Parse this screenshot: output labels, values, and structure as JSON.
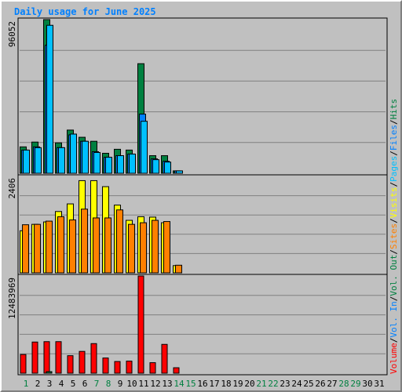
{
  "chart_data": {
    "type": "bar",
    "title": "Daily usage for June 2025",
    "categories": [
      "1",
      "2",
      "3",
      "4",
      "5",
      "6",
      "7",
      "8",
      "9",
      "10",
      "11",
      "12",
      "13",
      "14",
      "15",
      "16",
      "17",
      "18",
      "19",
      "20",
      "21",
      "22",
      "23",
      "24",
      "25",
      "26",
      "27",
      "28",
      "29",
      "30",
      "31"
    ],
    "weekend_days": [
      "1",
      "7",
      "8",
      "14",
      "15",
      "21",
      "22",
      "28",
      "29"
    ],
    "legend": {
      "right_axis_text": [
        {
          "text": "Hits",
          "color": "#008040"
        },
        {
          "text": "/",
          "color": "#000000"
        },
        {
          "text": "Files",
          "color": "#0080ff"
        },
        {
          "text": "/",
          "color": "#000000"
        },
        {
          "text": "Pages",
          "color": "#00c0ff"
        },
        {
          "text": "/",
          "color": "#000000"
        },
        {
          "text": "Visits",
          "color": "#ffff00"
        },
        {
          "text": "/",
          "color": "#000000"
        },
        {
          "text": "Sites",
          "color": "#ff8000"
        },
        {
          "text": "/",
          "color": "#000000"
        },
        {
          "text": "Vol. Out",
          "color": "#008040"
        },
        {
          "text": "/",
          "color": "#000000"
        },
        {
          "text": "Vol. In",
          "color": "#0080ff"
        },
        {
          "text": "/",
          "color": "#000000"
        },
        {
          "text": "Volume",
          "color": "#ff0000"
        }
      ]
    },
    "panels": [
      {
        "name": "hits-files-pages",
        "max_label": "96052",
        "ylim": [
          0,
          96052
        ],
        "series": [
          {
            "name": "Hits",
            "color": "#008040",
            "values": [
              16500,
              19500,
              96052,
              19000,
              27000,
              22500,
              20000,
              12500,
              15000,
              14500,
              68500,
              11000,
              11000,
              1500,
              0,
              0,
              0,
              0,
              0,
              0,
              0,
              0,
              0,
              0,
              0,
              0,
              0,
              0,
              0,
              0,
              0
            ]
          },
          {
            "name": "Files",
            "color": "#0080ff",
            "values": [
              14500,
              16500,
              80000,
              16000,
              24000,
              20000,
              13500,
              10000,
              11000,
              12000,
              37000,
              9000,
              7500,
              1500,
              0,
              0,
              0,
              0,
              0,
              0,
              0,
              0,
              0,
              0,
              0,
              0,
              0,
              0,
              0,
              0,
              0
            ]
          },
          {
            "name": "Pages",
            "color": "#00c0ff",
            "values": [
              14500,
              16000,
              92500,
              16000,
              24500,
              20000,
              13000,
              10000,
              11000,
              12000,
              32500,
              8500,
              7000,
              1500,
              0,
              0,
              0,
              0,
              0,
              0,
              0,
              0,
              0,
              0,
              0,
              0,
              0,
              0,
              0,
              0,
              0
            ]
          }
        ]
      },
      {
        "name": "visits-sites",
        "max_label": "2406",
        "ylim": [
          0,
          2406
        ],
        "series": [
          {
            "name": "Visits",
            "color": "#ffff00",
            "values": [
              1050,
              1210,
              1270,
              1530,
              1720,
              2300,
              2300,
              2150,
              1690,
              1310,
              1400,
              1390,
              1250,
              180,
              0,
              0,
              0,
              0,
              0,
              0,
              0,
              0,
              0,
              0,
              0,
              0,
              0,
              0,
              0,
              0,
              0
            ]
          },
          {
            "name": "Sites",
            "color": "#ff8000",
            "values": [
              1200,
              1210,
              1290,
              1400,
              1320,
              1590,
              1370,
              1370,
              1570,
              1210,
              1250,
              1310,
              1280,
              190,
              0,
              0,
              0,
              0,
              0,
              0,
              0,
              0,
              0,
              0,
              0,
              0,
              0,
              0,
              0,
              0,
              0
            ]
          }
        ]
      },
      {
        "name": "volume",
        "max_label": "12483969",
        "ylim": [
          0,
          12483969
        ],
        "series": [
          {
            "name": "Volume",
            "color": "#ff0000",
            "values": [
              2400000,
              4000000,
              4050000,
              4050000,
              2250000,
              2800000,
              3800000,
              1950000,
              1500000,
              1550000,
              12483969,
              1350000,
              3700000,
              700000,
              0,
              0,
              0,
              0,
              0,
              0,
              0,
              0,
              0,
              0,
              0,
              0,
              0,
              0,
              0,
              0,
              0
            ]
          },
          {
            "name": "Vol. Out",
            "color": "#008040",
            "values": [
              0,
              0,
              200000,
              0,
              0,
              0,
              0,
              0,
              0,
              0,
              0,
              0,
              0,
              0,
              0,
              0,
              0,
              0,
              0,
              0,
              0,
              0,
              0,
              0,
              0,
              0,
              0,
              0,
              0,
              0,
              0
            ]
          }
        ]
      }
    ]
  },
  "colors": {
    "panel_bg": "#c0c0c0",
    "title": "#0080ff",
    "weekday_label": "#000000",
    "weekend_label": "#008040",
    "grid": "#808080"
  }
}
